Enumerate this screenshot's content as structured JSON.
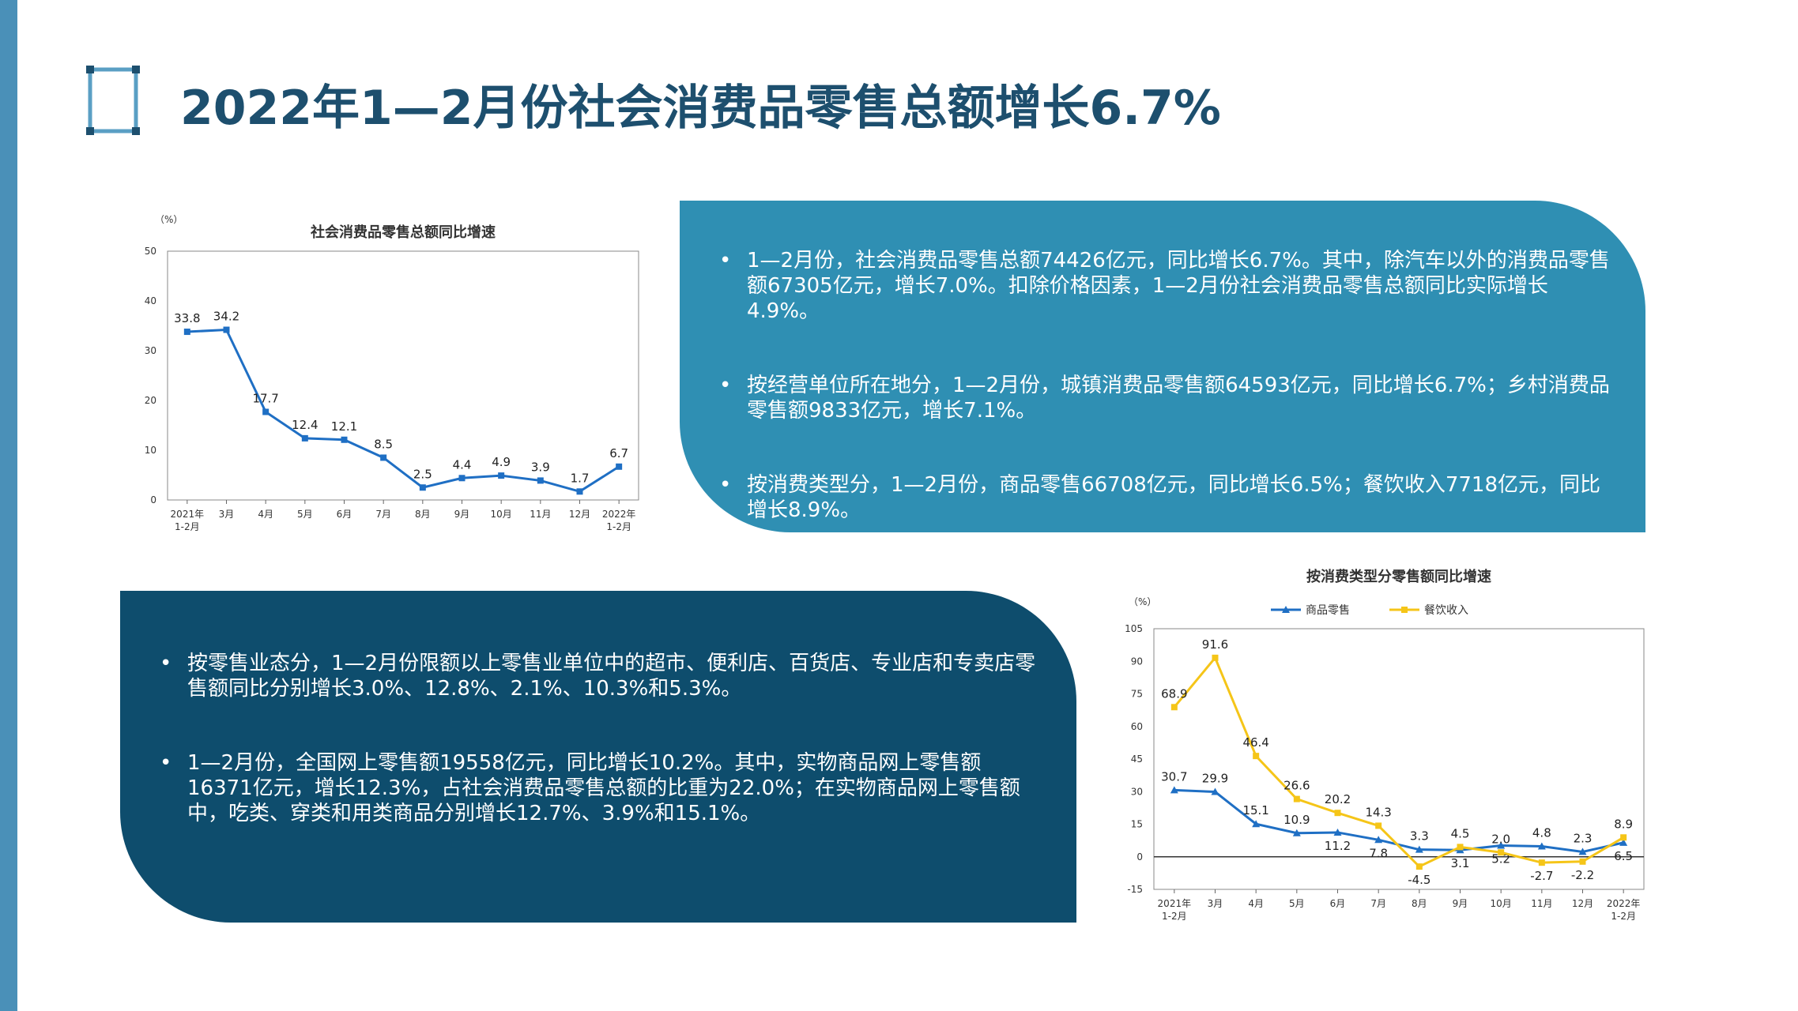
{
  "page": {
    "title": "2022年1—2月份社会消费品零售总额增长6.7%"
  },
  "theme": {
    "accent_light": "#2f8fb3",
    "accent_dark": "#0e4d6d",
    "title_color": "#1d4f6e",
    "side_bar": "#4a90b8"
  },
  "top_panel": {
    "bullets": [
      "1—2月份，社会消费品零售总额74426亿元，同比增长6.7%。其中，除汽车以外的消费品零售额67305亿元，增长7.0%。扣除价格因素，1—2月份社会消费品零售总额同比实际增长4.9%。",
      "按经营单位所在地分，1—2月份，城镇消费品零售额64593亿元，同比增长6.7%；乡村消费品零售额9833亿元，增长7.1%。",
      "按消费类型分，1—2月份，商品零售66708亿元，同比增长6.5%；餐饮收入7718亿元，同比增长8.9%。"
    ]
  },
  "bottom_panel": {
    "bullets": [
      "按零售业态分，1—2月份限额以上零售业单位中的超市、便利店、百货店、专业店和专卖店零售额同比分别增长3.0%、12.8%、2.1%、10.3%和5.3%。",
      "1—2月份，全国网上零售额19558亿元，同比增长10.2%。其中，实物商品网上零售额16371亿元，增长12.3%，占社会消费品零售总额的比重为22.0%；在实物商品网上零售额中，吃类、穿类和用类商品分别增长12.7%、3.9%和15.1%。"
    ]
  },
  "bullet_glyph": "•",
  "chart_data": [
    {
      "type": "line",
      "title": "社会消费品零售总额同比增速",
      "unit_label": "（%）",
      "categories": [
        [
          "2021年",
          "1-2月"
        ],
        [
          "3月"
        ],
        [
          "4月"
        ],
        [
          "5月"
        ],
        [
          "6月"
        ],
        [
          "7月"
        ],
        [
          "8月"
        ],
        [
          "9月"
        ],
        [
          "10月"
        ],
        [
          "11月"
        ],
        [
          "12月"
        ],
        [
          "2022年",
          "1-2月"
        ]
      ],
      "ylim": [
        0,
        50
      ],
      "yticks": [
        0,
        10,
        20,
        30,
        40,
        50
      ],
      "grid": false,
      "series": [
        {
          "values": [
            33.8,
            34.2,
            17.7,
            12.4,
            12.1,
            8.5,
            2.5,
            4.4,
            4.9,
            3.9,
            1.7,
            6.7
          ],
          "color": "#1f6fc4",
          "marker": "square"
        }
      ]
    },
    {
      "type": "line",
      "title": "按消费类型分零售额同比增速",
      "unit_label": "（%）",
      "legend_position": "top",
      "categories": [
        [
          "2021年",
          "1-2月"
        ],
        [
          "3月"
        ],
        [
          "4月"
        ],
        [
          "5月"
        ],
        [
          "6月"
        ],
        [
          "7月"
        ],
        [
          "8月"
        ],
        [
          "9月"
        ],
        [
          "10月"
        ],
        [
          "11月"
        ],
        [
          "12月"
        ],
        [
          "2022年",
          "1-2月"
        ]
      ],
      "ylim": [
        -15,
        105
      ],
      "yticks": [
        -15,
        0,
        15,
        30,
        45,
        60,
        75,
        90,
        105
      ],
      "grid": false,
      "series": [
        {
          "name": "商品零售",
          "values": [
            30.7,
            29.9,
            15.1,
            10.9,
            11.2,
            7.8,
            3.3,
            3.1,
            5.2,
            4.8,
            2.3,
            6.5
          ],
          "color": "#1f6fc4",
          "marker": "triangle"
        },
        {
          "name": "餐饮收入",
          "values": [
            68.9,
            91.6,
            46.4,
            26.6,
            20.2,
            14.3,
            -4.5,
            4.5,
            2.0,
            -2.7,
            -2.2,
            8.9
          ],
          "color": "#f5c518",
          "marker": "square"
        }
      ]
    }
  ]
}
